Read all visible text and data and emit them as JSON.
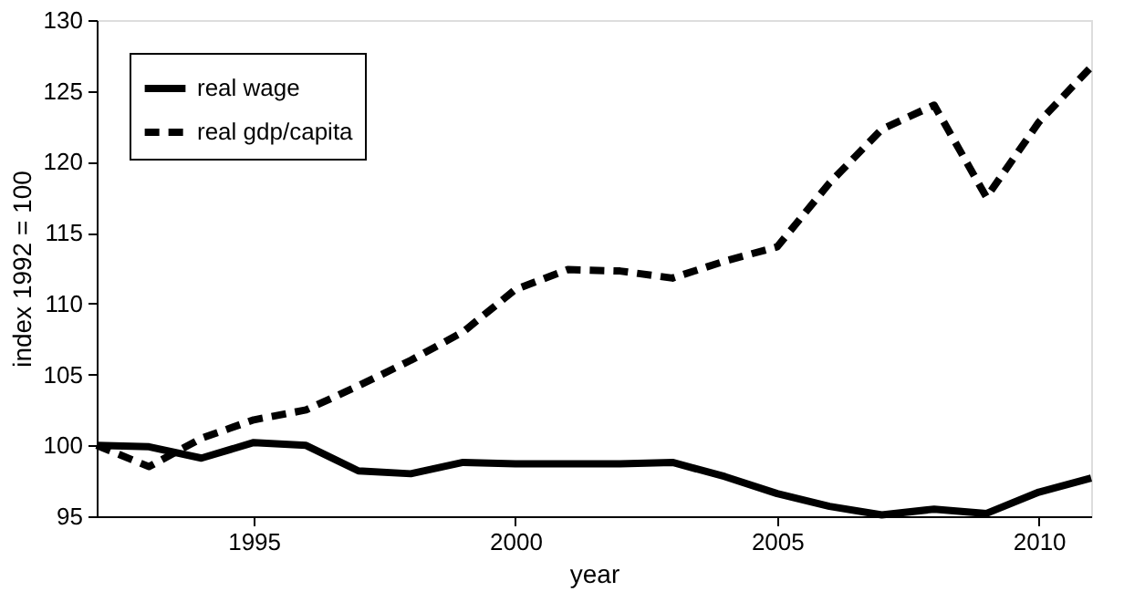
{
  "chart_data": {
    "type": "line",
    "xlabel": "year",
    "ylabel": "index 1992 = 100",
    "x": [
      1992,
      1993,
      1994,
      1995,
      1996,
      1997,
      1998,
      1999,
      2000,
      2001,
      2002,
      2003,
      2004,
      2005,
      2006,
      2007,
      2008,
      2009,
      2010,
      2011
    ],
    "series": [
      {
        "name": "real wage",
        "color": "#000000",
        "line_style": "solid",
        "values": [
          100,
          99.9,
          99.1,
          100.2,
          100,
          98.2,
          98,
          98.8,
          98.7,
          98.7,
          98.7,
          98.8,
          97.8,
          96.6,
          95.7,
          95.1,
          95.5,
          95.2,
          96.7,
          97.7
        ]
      },
      {
        "name": "real gdp/capita",
        "color": "#000000",
        "line_style": "dashed",
        "values": [
          100,
          98.5,
          100.5,
          101.8,
          102.5,
          104.2,
          106,
          108,
          111,
          112.4,
          112.3,
          111.8,
          113,
          114,
          118.5,
          122.3,
          124,
          117.5,
          122.8,
          126.7
        ]
      }
    ],
    "xlim": [
      1992,
      2011
    ],
    "xticks": [
      1995,
      2000,
      2005,
      2010
    ],
    "ylim": [
      95,
      130
    ],
    "yticks": [
      95,
      100,
      105,
      110,
      115,
      120,
      125,
      130
    ],
    "grid": false,
    "legend": "top left",
    "marker": "none"
  }
}
